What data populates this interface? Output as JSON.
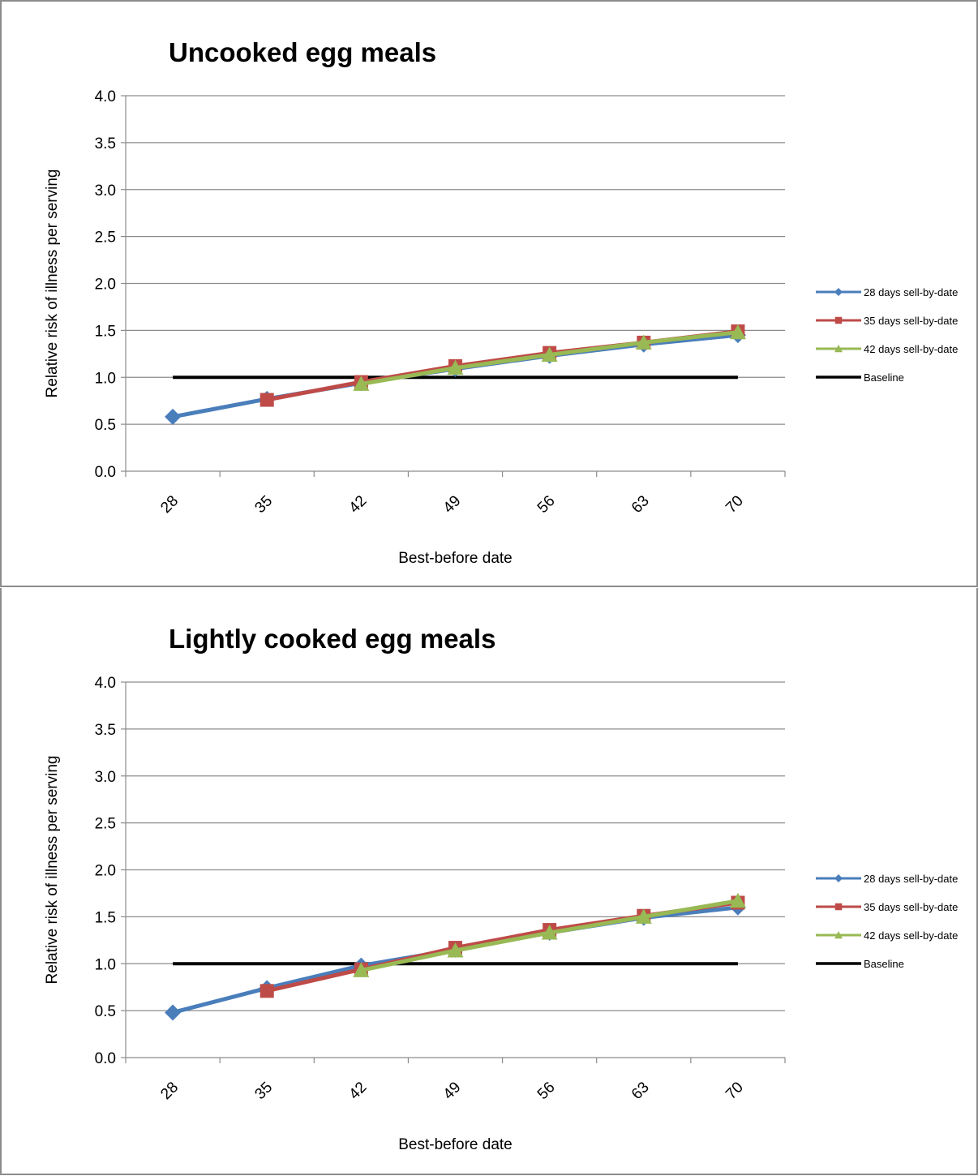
{
  "chart_data": [
    {
      "type": "line",
      "title": "Uncooked egg meals",
      "xlabel": "Best-before date",
      "ylabel": "Relative risk of illness per serving",
      "categories": [
        "28",
        "35",
        "42",
        "49",
        "56",
        "63",
        "70"
      ],
      "ylim": [
        0,
        4
      ],
      "yticks": [
        "0.0",
        "0.5",
        "1.0",
        "1.5",
        "2.0",
        "2.5",
        "3.0",
        "3.5",
        "4.0"
      ],
      "grid": true,
      "legend": "right",
      "series": [
        {
          "name": "28 days sell-by-date",
          "color": "#4a7ebb",
          "marker": "diamond",
          "values": [
            0.58,
            0.77,
            0.94,
            1.09,
            1.23,
            1.35,
            1.45
          ]
        },
        {
          "name": "35 days sell-by-date",
          "color": "#be4b48",
          "marker": "square",
          "values": [
            null,
            0.76,
            0.95,
            1.12,
            1.26,
            1.37,
            1.49
          ]
        },
        {
          "name": "42 days sell-by-date",
          "color": "#98b954",
          "marker": "triangle",
          "values": [
            null,
            null,
            0.93,
            1.1,
            1.24,
            1.37,
            1.48
          ]
        },
        {
          "name": "Baseline",
          "color": "#000000",
          "marker": "none",
          "values": [
            1,
            1,
            1,
            1,
            1,
            1,
            1
          ]
        }
      ]
    },
    {
      "type": "line",
      "title": "Lightly cooked egg meals",
      "xlabel": "Best-before date",
      "ylabel": "Relative risk of illness per serving",
      "categories": [
        "28",
        "35",
        "42",
        "49",
        "56",
        "63",
        "70"
      ],
      "ylim": [
        0,
        4
      ],
      "yticks": [
        "0.0",
        "0.5",
        "1.0",
        "1.5",
        "2.0",
        "2.5",
        "3.0",
        "3.5",
        "4.0"
      ],
      "grid": true,
      "legend": "right",
      "series": [
        {
          "name": "28 days sell-by-date",
          "color": "#4a7ebb",
          "marker": "diamond",
          "values": [
            0.48,
            0.74,
            0.98,
            1.15,
            1.33,
            1.49,
            1.6
          ]
        },
        {
          "name": "35 days sell-by-date",
          "color": "#be4b48",
          "marker": "square",
          "values": [
            null,
            0.71,
            0.94,
            1.17,
            1.36,
            1.51,
            1.65
          ]
        },
        {
          "name": "42 days sell-by-date",
          "color": "#98b954",
          "marker": "triangle",
          "values": [
            null,
            null,
            0.93,
            1.14,
            1.33,
            1.5,
            1.67
          ]
        },
        {
          "name": "Baseline",
          "color": "#000000",
          "marker": "none",
          "values": [
            1,
            1,
            1,
            1,
            1,
            1,
            1
          ]
        }
      ]
    }
  ]
}
